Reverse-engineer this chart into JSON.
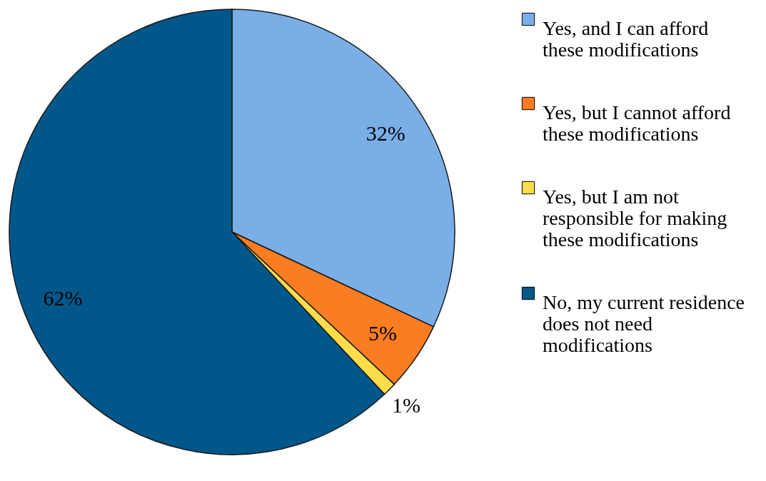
{
  "chart_data": {
    "type": "pie",
    "categories": [
      "Yes, and I can afford these modifications",
      "Yes, but I cannot afford these modifications",
      "Yes, but I am not responsible for making these modifications",
      "No, my current residence does not need modifications"
    ],
    "values": [
      32,
      5,
      1,
      62
    ],
    "colors": [
      "#7aaee6",
      "#fb7d21",
      "#fddc4a",
      "#01578a"
    ],
    "value_labels": [
      "32%",
      "5%",
      "1%",
      "62%"
    ],
    "legend": "right"
  }
}
